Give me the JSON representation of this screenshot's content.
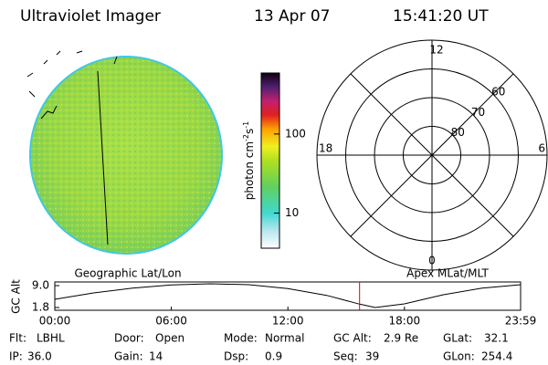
{
  "header": {
    "instrument": "Ultraviolet Imager",
    "date": "13 Apr 07",
    "time": "15:41:20 UT"
  },
  "colorbar": {
    "label": [
      "photon cm",
      "-2",
      "s",
      "-1"
    ],
    "lim": [
      3.6,
      590
    ],
    "log": true,
    "ticks": [
      {
        "value": 10,
        "label": "10"
      },
      {
        "value": 100,
        "label": "100"
      }
    ]
  },
  "polar": {
    "lat_lim": [
      90,
      50
    ],
    "lat_rings": [
      60,
      70,
      80
    ],
    "mlt_labels": {
      "top": "12",
      "left": "18",
      "right": "6",
      "bottom": "0"
    }
  },
  "altitude_plot": {
    "left_title": "Geographic Lat/Lon",
    "right_title": "Apex MLat/MLT",
    "y_label": "GC Alt",
    "ylim": [
      0.9,
      10.2
    ],
    "yticks": [
      {
        "value": 9.0,
        "label": "9.0"
      },
      {
        "value": 1.8,
        "label": "1.8"
      }
    ],
    "xlim": [
      0,
      23.98
    ],
    "xticks": [
      {
        "value": 0,
        "label": "00:00"
      },
      {
        "value": 6,
        "label": "06:00"
      },
      {
        "value": 12,
        "label": "12:00"
      },
      {
        "value": 18,
        "label": "18:00"
      },
      {
        "value": 23.98,
        "label": "23:59"
      }
    ],
    "x": [
      0,
      2,
      4,
      6,
      8,
      10,
      12,
      14,
      15.69,
      16.5,
      18,
      20,
      22,
      23.98
    ],
    "values": [
      4.5,
      6.6,
      8.2,
      9.2,
      9.6,
      9.3,
      8.0,
      5.8,
      2.9,
      1.8,
      3.0,
      6.0,
      8.2,
      9.3
    ],
    "current_time": 15.69
  },
  "info": [
    [
      {
        "label": "Flt:",
        "value": "LBHL"
      },
      {
        "label": "Door:",
        "value": "Open"
      },
      {
        "label": "Mode:",
        "value": "Normal"
      },
      {
        "label": "GC Alt:",
        "value": "2.9 Re"
      },
      {
        "label": "GLat:",
        "value": "32.1"
      }
    ],
    [
      {
        "label": "IP:",
        "value": "36.0"
      },
      {
        "label": "Gain:",
        "value": "14"
      },
      {
        "label": "Dsp:",
        "value": "0.9"
      },
      {
        "label": "Seq:",
        "value": "39"
      },
      {
        "label": "GLon:",
        "value": "254.4"
      }
    ]
  ]
}
